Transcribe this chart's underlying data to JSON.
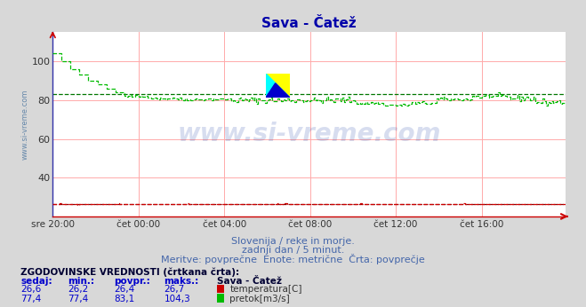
{
  "title": "Sava - Čatež",
  "title_color": "#0000aa",
  "bg_color": "#d8d8d8",
  "plot_bg_color": "#ffffff",
  "subtitle_lines": [
    "Slovenija / reke in morje.",
    "zadnji dan / 5 minut.",
    "Meritve: povprečne  Enote: metrične  Črta: povprečje"
  ],
  "subtitle_color": "#4466aa",
  "watermark_text": "www.si-vreme.com",
  "watermark_color": "#2244aa",
  "watermark_alpha": 0.18,
  "ylabel_text": "www.si-vreme.com",
  "ylabel_color": "#6688aa",
  "xticklabels": [
    "sre 20:00",
    "čet 00:00",
    "čet 04:00",
    "čet 08:00",
    "čet 12:00",
    "čet 16:00"
  ],
  "xtick_positions": [
    0,
    48,
    96,
    144,
    192,
    240
  ],
  "grid_color_v": "#ffaaaa",
  "grid_color_h": "#ffaaaa",
  "ylim": [
    20,
    115
  ],
  "yticks": [
    40,
    60,
    80,
    100
  ],
  "flow_color": "#00bb00",
  "flow_avg_color": "#007700",
  "temp_color": "#cc0000",
  "temp_avg_color": "#880000",
  "total_points": 288,
  "flow_avg": 83.1,
  "temp_avg": 26.4,
  "stats_title": "ZGODOVINSKE VREDNOSTI (črtkana črta):",
  "stats_headers": [
    "sedaj:",
    "min.:",
    "povpr.:",
    "maks.:"
  ],
  "stats_rows": [
    {
      "values": [
        "26,6",
        "26,2",
        "26,4",
        "26,7"
      ],
      "label": "temperatura[C]",
      "color": "#cc0000"
    },
    {
      "values": [
        "77,4",
        "77,4",
        "83,1",
        "104,3"
      ],
      "label": "pretok[m3/s]",
      "color": "#00bb00"
    }
  ],
  "legend_station": "Sava - Čatež"
}
